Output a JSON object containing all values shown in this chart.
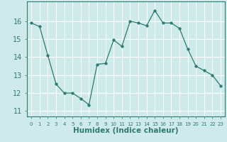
{
  "x": [
    0,
    1,
    2,
    3,
    4,
    5,
    6,
    7,
    8,
    9,
    10,
    11,
    12,
    13,
    14,
    15,
    16,
    17,
    18,
    19,
    20,
    21,
    22,
    23
  ],
  "y": [
    15.9,
    15.7,
    14.1,
    12.5,
    12.0,
    12.0,
    11.7,
    11.35,
    13.6,
    13.65,
    14.95,
    14.6,
    16.0,
    15.9,
    15.75,
    16.6,
    15.9,
    15.9,
    15.6,
    14.45,
    13.5,
    13.25,
    13.0,
    12.4
  ],
  "line_color": "#2d7a6e",
  "marker": "o",
  "marker_size": 2.5,
  "bg_color": "#ceeaea",
  "grid_color": "#ffffff",
  "tick_color": "#2d7a6e",
  "xlabel": "Humidex (Indice chaleur)",
  "xlabel_fontsize": 7.5,
  "ylabel_ticks": [
    11,
    12,
    13,
    14,
    15,
    16
  ],
  "xlim": [
    -0.5,
    23.5
  ],
  "ylim": [
    10.7,
    17.1
  ],
  "xtick_labels": [
    "0",
    "1",
    "2",
    "3",
    "4",
    "5",
    "6",
    "7",
    "8",
    "9",
    "10",
    "11",
    "12",
    "13",
    "14",
    "15",
    "16",
    "17",
    "18",
    "19",
    "20",
    "21",
    "22",
    "23"
  ],
  "ytick_fontsize": 7,
  "xtick_fontsize": 5
}
